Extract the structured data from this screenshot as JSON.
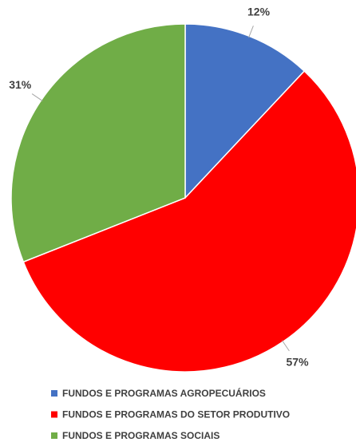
{
  "chart_data": {
    "type": "pie",
    "categories": [
      "FUNDOS E PROGRAMAS AGROPECUÁRIOS",
      "FUNDOS E PROGRAMAS DO SETOR PRODUTIVO",
      "FUNDOS E PROGRAMAS SOCIAIS"
    ],
    "values": [
      12,
      57,
      31
    ],
    "value_labels": [
      "12%",
      "57%",
      "31%"
    ],
    "colors": [
      "#4472c4",
      "#ff0000",
      "#70ad47"
    ]
  }
}
